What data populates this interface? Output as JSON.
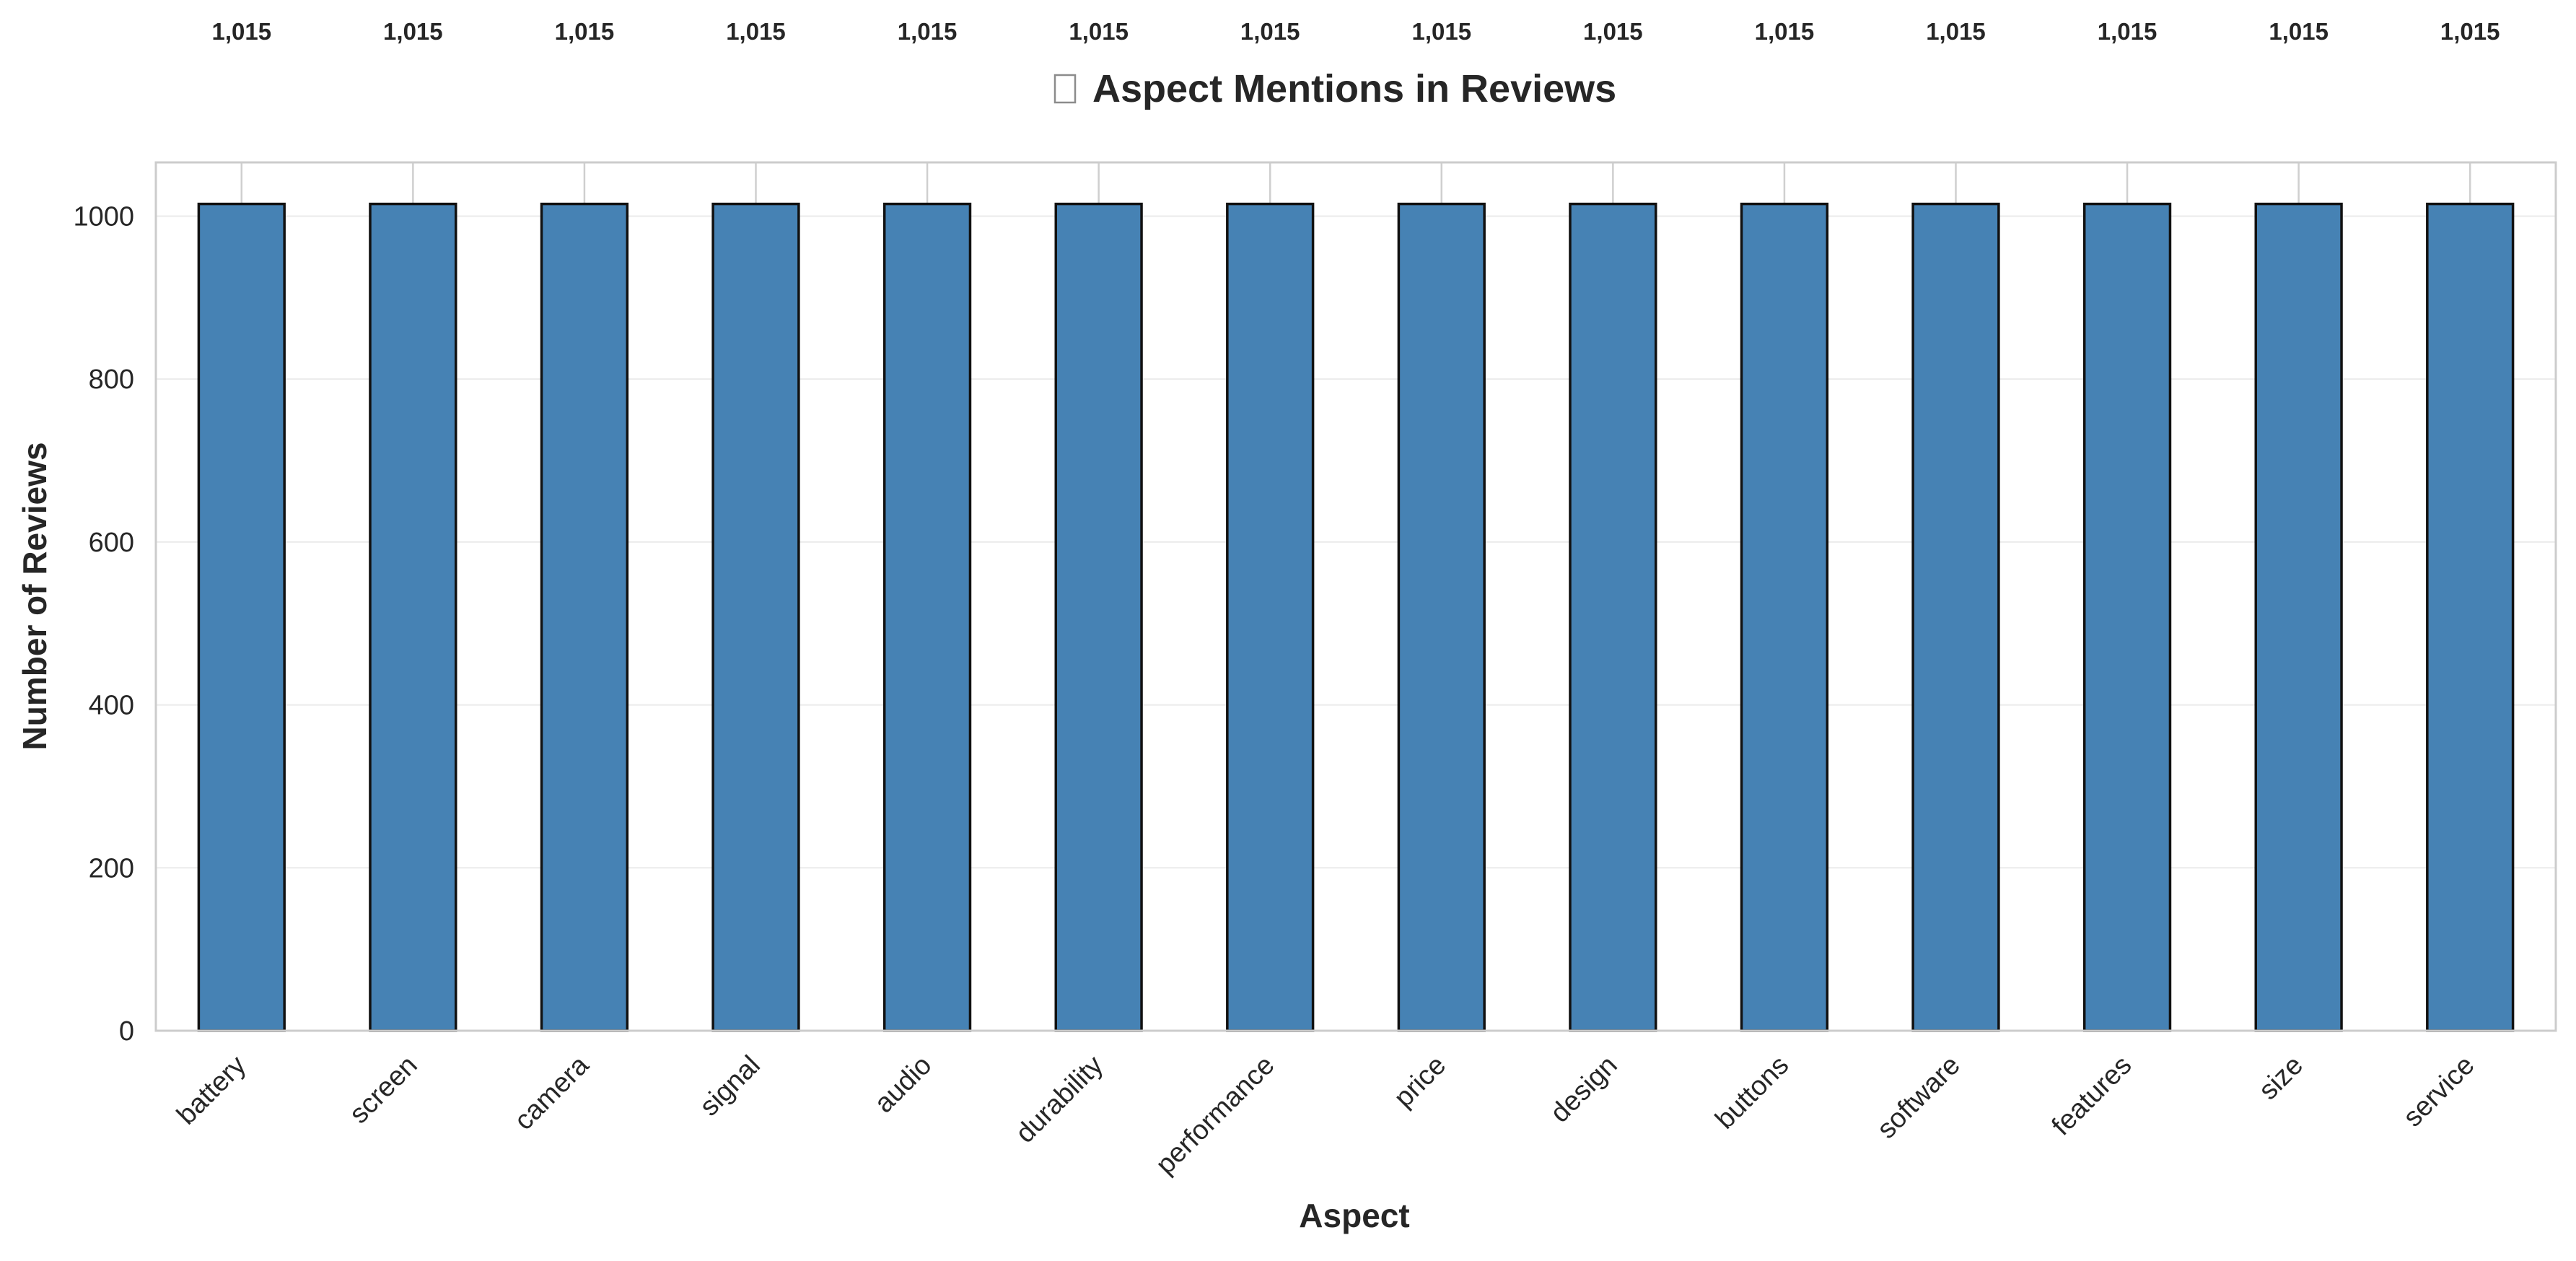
{
  "chart_data": {
    "type": "bar",
    "title": "Aspect Mentions in Reviews",
    "title_icon": "missing-glyph-box",
    "xlabel": "Aspect",
    "ylabel": "Number of Reviews",
    "categories": [
      "battery",
      "screen",
      "camera",
      "signal",
      "audio",
      "durability",
      "performance",
      "price",
      "design",
      "buttons",
      "software",
      "features",
      "size",
      "service"
    ],
    "values": [
      1015,
      1015,
      1015,
      1015,
      1015,
      1015,
      1015,
      1015,
      1015,
      1015,
      1015,
      1015,
      1015,
      1015
    ],
    "value_labels": [
      "1,015",
      "1,015",
      "1,015",
      "1,015",
      "1,015",
      "1,015",
      "1,015",
      "1,015",
      "1,015",
      "1,015",
      "1,015",
      "1,015",
      "1,015",
      "1,015"
    ],
    "ylim": [
      0,
      1066
    ],
    "yticks": [
      0,
      200,
      400,
      600,
      800,
      1000
    ],
    "ytick_labels": [
      "0",
      "200",
      "400",
      "600",
      "800",
      "1000"
    ],
    "bar_color": "#4682b4",
    "bar_edge_color": "#111111",
    "grid": true,
    "legend": "none"
  }
}
